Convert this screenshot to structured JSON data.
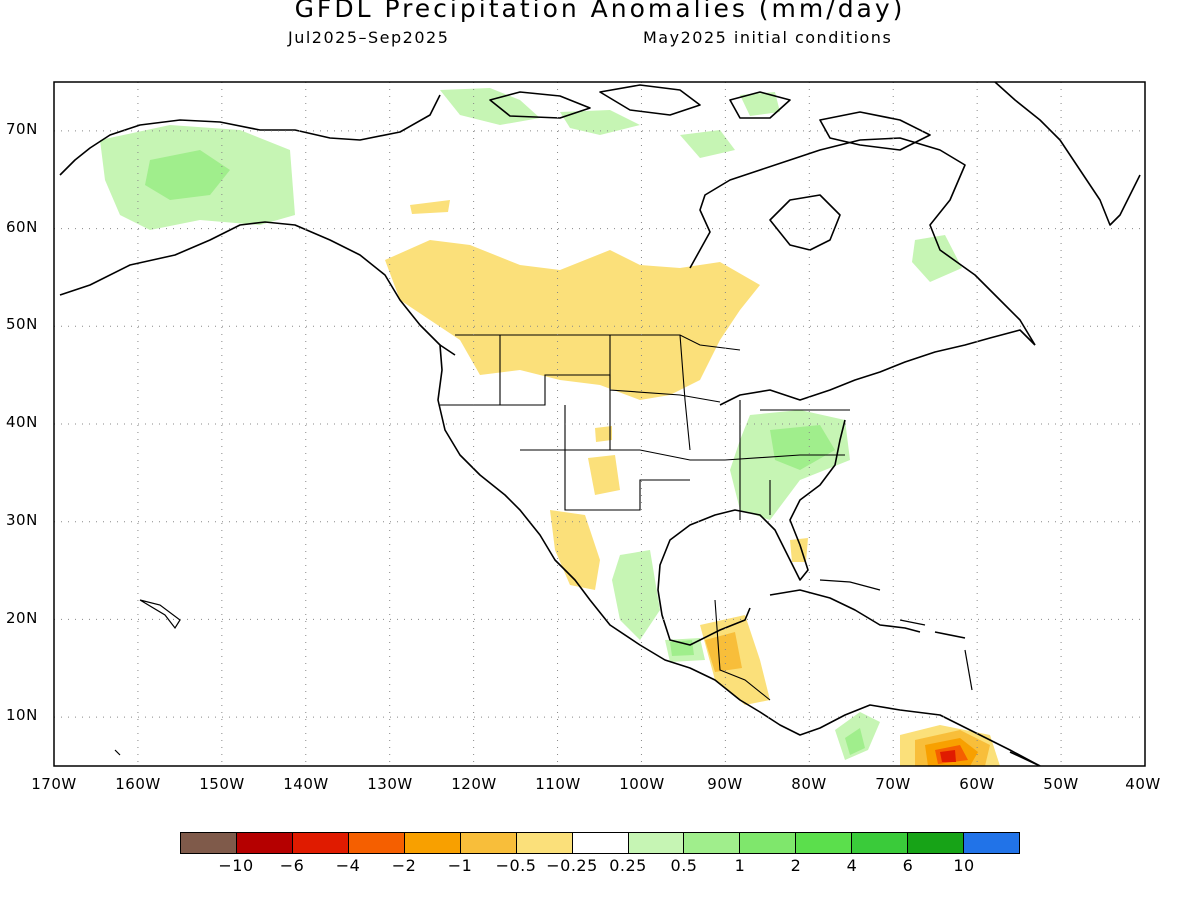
{
  "header": {
    "title": "GFDL Precipitation Anomalies (mm/day)",
    "period": "Jul2025–Sep2025",
    "init": "May2025 initial conditions"
  },
  "map": {
    "projection": "cylindrical equidistant",
    "lon_range": [
      -170,
      -40
    ],
    "lat_range": [
      5,
      75
    ],
    "grid": "dotted",
    "lat_ticks": [
      "70N",
      "60N",
      "50N",
      "40N",
      "30N",
      "20N",
      "10N"
    ],
    "lon_ticks": [
      "170W",
      "160W",
      "150W",
      "140W",
      "130W",
      "120W",
      "110W",
      "100W",
      "90W",
      "80W",
      "70W",
      "60W",
      "50W",
      "40W"
    ]
  },
  "colorbar": {
    "colors": [
      "#7f5a4a",
      "#b50000",
      "#e01b00",
      "#f55f00",
      "#f8a000",
      "#f8be3a",
      "#fbe07a",
      "#ffffff",
      "#c6f5b4",
      "#a0ee8c",
      "#7fe76c",
      "#5bdf4c",
      "#3acb3a",
      "#17a317",
      "#2173e8"
    ],
    "labels": [
      "−10",
      "−6",
      "−4",
      "−2",
      "−1",
      "−0.5",
      "−0.25",
      "0.25",
      "0.5",
      "1",
      "2",
      "4",
      "6",
      "10"
    ]
  }
}
